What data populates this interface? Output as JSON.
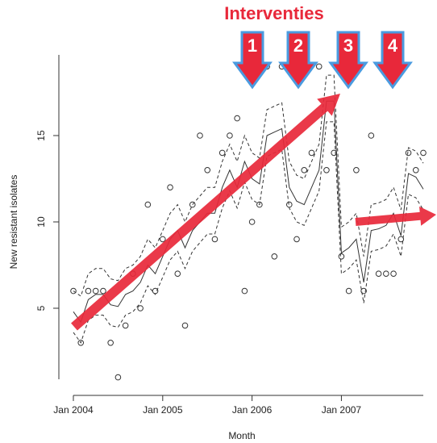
{
  "chart_data": {
    "type": "line",
    "title": "Interventies",
    "intervention_labels": [
      "1",
      "2",
      "3",
      "4"
    ],
    "x_label": "Month",
    "y_label": "New resistant isolates",
    "x": [
      "2004-01",
      "2004-02",
      "2004-03",
      "2004-04",
      "2004-05",
      "2004-06",
      "2004-07",
      "2004-08",
      "2004-09",
      "2004-10",
      "2004-11",
      "2004-12",
      "2005-01",
      "2005-02",
      "2005-03",
      "2005-04",
      "2005-05",
      "2005-06",
      "2005-07",
      "2005-08",
      "2005-09",
      "2005-10",
      "2005-11",
      "2005-12",
      "2006-01",
      "2006-02",
      "2006-03",
      "2006-04",
      "2006-05",
      "2006-06",
      "2006-07",
      "2006-08",
      "2006-09",
      "2006-10",
      "2006-11",
      "2006-12",
      "2007-01",
      "2007-02",
      "2007-03",
      "2007-04",
      "2007-05",
      "2007-06",
      "2007-07",
      "2007-08",
      "2007-09",
      "2007-10",
      "2007-11",
      "2007-12"
    ],
    "series": [
      {
        "style": "points",
        "color": "#333333",
        "values": [
          6,
          3,
          6,
          6,
          6,
          3,
          1,
          4,
          7,
          5,
          11,
          6,
          9,
          12,
          7,
          4,
          11,
          15,
          13,
          9,
          14,
          15,
          16,
          6,
          10,
          11,
          19,
          8,
          19,
          11,
          9,
          13,
          14,
          19,
          13,
          14,
          8,
          6,
          13,
          6,
          15,
          7,
          7,
          7,
          9,
          14,
          13,
          14
        ]
      },
      {
        "style": "solid",
        "color": "#333333",
        "values": [
          4.8,
          4.2,
          5.5,
          5.8,
          5.8,
          5.2,
          5.1,
          5.8,
          6,
          6.5,
          7.5,
          7,
          8,
          9,
          9.5,
          8.5,
          9.5,
          10,
          10.5,
          10.5,
          12,
          13,
          12,
          13.5,
          12.5,
          12.2,
          15,
          15.2,
          15.4,
          12,
          11.2,
          11,
          12,
          13,
          17,
          17,
          8.2,
          8.5,
          9,
          6.5,
          9.5,
          9.6,
          9.8,
          10.5,
          9.2,
          12.8,
          12.6,
          11.9
        ]
      },
      {
        "style": "dashed",
        "color": "#333333",
        "values": [
          3.6,
          3,
          4.3,
          4.6,
          4.6,
          4,
          3.9,
          4.6,
          4.8,
          5.3,
          6.3,
          5.8,
          6.8,
          7.8,
          8.3,
          7.3,
          8.3,
          8.8,
          9.3,
          9.3,
          10.8,
          11.8,
          10.8,
          12.3,
          11.3,
          11,
          13.8,
          14,
          14.2,
          10.8,
          10,
          9.8,
          10.8,
          11.8,
          15.8,
          15.8,
          7,
          7.3,
          7.8,
          5.3,
          8.3,
          8.4,
          8.6,
          9.3,
          8,
          11.6,
          11.4,
          10.7
        ]
      },
      {
        "style": "dashed",
        "color": "#333333",
        "values": [
          6,
          5.7,
          7,
          7.3,
          7.3,
          6.7,
          6.6,
          7.3,
          7.5,
          8,
          9,
          8.5,
          9.5,
          10.5,
          11,
          10,
          11,
          11.5,
          12,
          12,
          13.5,
          14.5,
          13.5,
          15,
          14,
          13.7,
          16.5,
          16.7,
          16.9,
          13.5,
          12.7,
          12.5,
          13.5,
          14.5,
          18.5,
          18.5,
          9.7,
          10,
          10.5,
          8,
          11,
          11.1,
          11.3,
          12,
          10.7,
          14.3,
          14.1,
          13.4
        ]
      }
    ],
    "xlim": [
      "2004-01",
      "2007-12"
    ],
    "xticks": [
      {
        "value": "2004-01",
        "label": "Jan 2004"
      },
      {
        "value": "2005-01",
        "label": "Jan 2005"
      },
      {
        "value": "2006-01",
        "label": "Jan 2006"
      },
      {
        "value": "2007-01",
        "label": "Jan 2007"
      }
    ],
    "ylim": [
      0,
      20
    ],
    "yticks": [
      5,
      10,
      15
    ],
    "grid": false
  }
}
